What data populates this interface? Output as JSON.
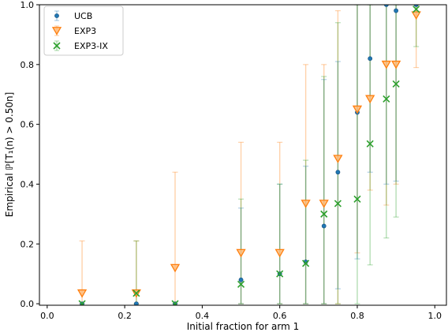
{
  "chart_data": {
    "type": "scatter",
    "xlabel": "Initial fraction for arm 1",
    "ylabel": "Empirical ℙ[T₁(n) > 0.50n]",
    "xlim": [
      -0.02,
      1.03
    ],
    "ylim": [
      -0.005,
      1.0
    ],
    "xticks": [
      0.0,
      0.2,
      0.4,
      0.6,
      0.8,
      1.0
    ],
    "xtick_labels": [
      "0.0",
      "0.2",
      "0.4",
      "0.6",
      "0.8",
      "1.0"
    ],
    "yticks": [
      0.0,
      0.2,
      0.4,
      0.6,
      0.8,
      1.0
    ],
    "ytick_labels": [
      "0.0",
      "0.2",
      "0.4",
      "0.6",
      "0.8",
      "1.0"
    ],
    "grid": false,
    "legend_position": "top-left",
    "x": [
      0.09,
      0.23,
      0.33,
      0.5,
      0.6,
      0.667,
      0.714,
      0.75,
      0.8,
      0.833,
      0.875,
      0.9,
      0.952
    ],
    "series": [
      {
        "name": "UCB",
        "marker": "circle",
        "color": "#1f77b4",
        "values": [
          0.0,
          0.0,
          0.0,
          0.08,
          0.1,
          0.14,
          0.26,
          0.44,
          0.64,
          0.82,
          1.0,
          0.98,
          1.0
        ],
        "err_low": [
          0.0,
          0.0,
          0.0,
          0.0,
          0.0,
          0.0,
          0.0,
          0.05,
          0.15,
          0.44,
          0.4,
          0.41,
          1.0
        ],
        "err_high": [
          0.0,
          0.0,
          0.0,
          0.32,
          0.4,
          0.46,
          0.75,
          0.81,
          1.0,
          1.0,
          1.0,
          1.0,
          1.0
        ]
      },
      {
        "name": "EXP3",
        "marker": "triangle-down",
        "color": "#ff7f0e",
        "values": [
          0.035,
          0.035,
          0.12,
          0.17,
          0.17,
          0.335,
          0.335,
          0.485,
          0.65,
          0.685,
          0.8,
          0.8,
          0.965
        ],
        "err_low": [
          0.0,
          0.0,
          0.0,
          0.0,
          0.0,
          0.0,
          0.0,
          0.0,
          0.17,
          0.38,
          0.33,
          0.4,
          0.79
        ],
        "err_high": [
          0.21,
          0.21,
          0.44,
          0.54,
          0.54,
          0.8,
          0.8,
          0.98,
          1.0,
          1.0,
          1.0,
          1.0,
          1.0
        ]
      },
      {
        "name": "EXP3-IX",
        "marker": "x",
        "color": "#2ca02c",
        "values": [
          0.0,
          0.035,
          0.0,
          0.065,
          0.1,
          0.135,
          0.3,
          0.335,
          0.35,
          0.535,
          0.685,
          0.735,
          0.985
        ],
        "err_low": [
          0.0,
          0.0,
          0.0,
          0.0,
          0.0,
          0.0,
          0.0,
          0.0,
          0.0,
          0.13,
          0.22,
          0.29,
          0.86
        ],
        "err_high": [
          0.0,
          0.21,
          0.0,
          0.35,
          0.4,
          0.48,
          0.76,
          0.94,
          1.0,
          1.0,
          1.0,
          1.0,
          1.0
        ]
      }
    ]
  }
}
